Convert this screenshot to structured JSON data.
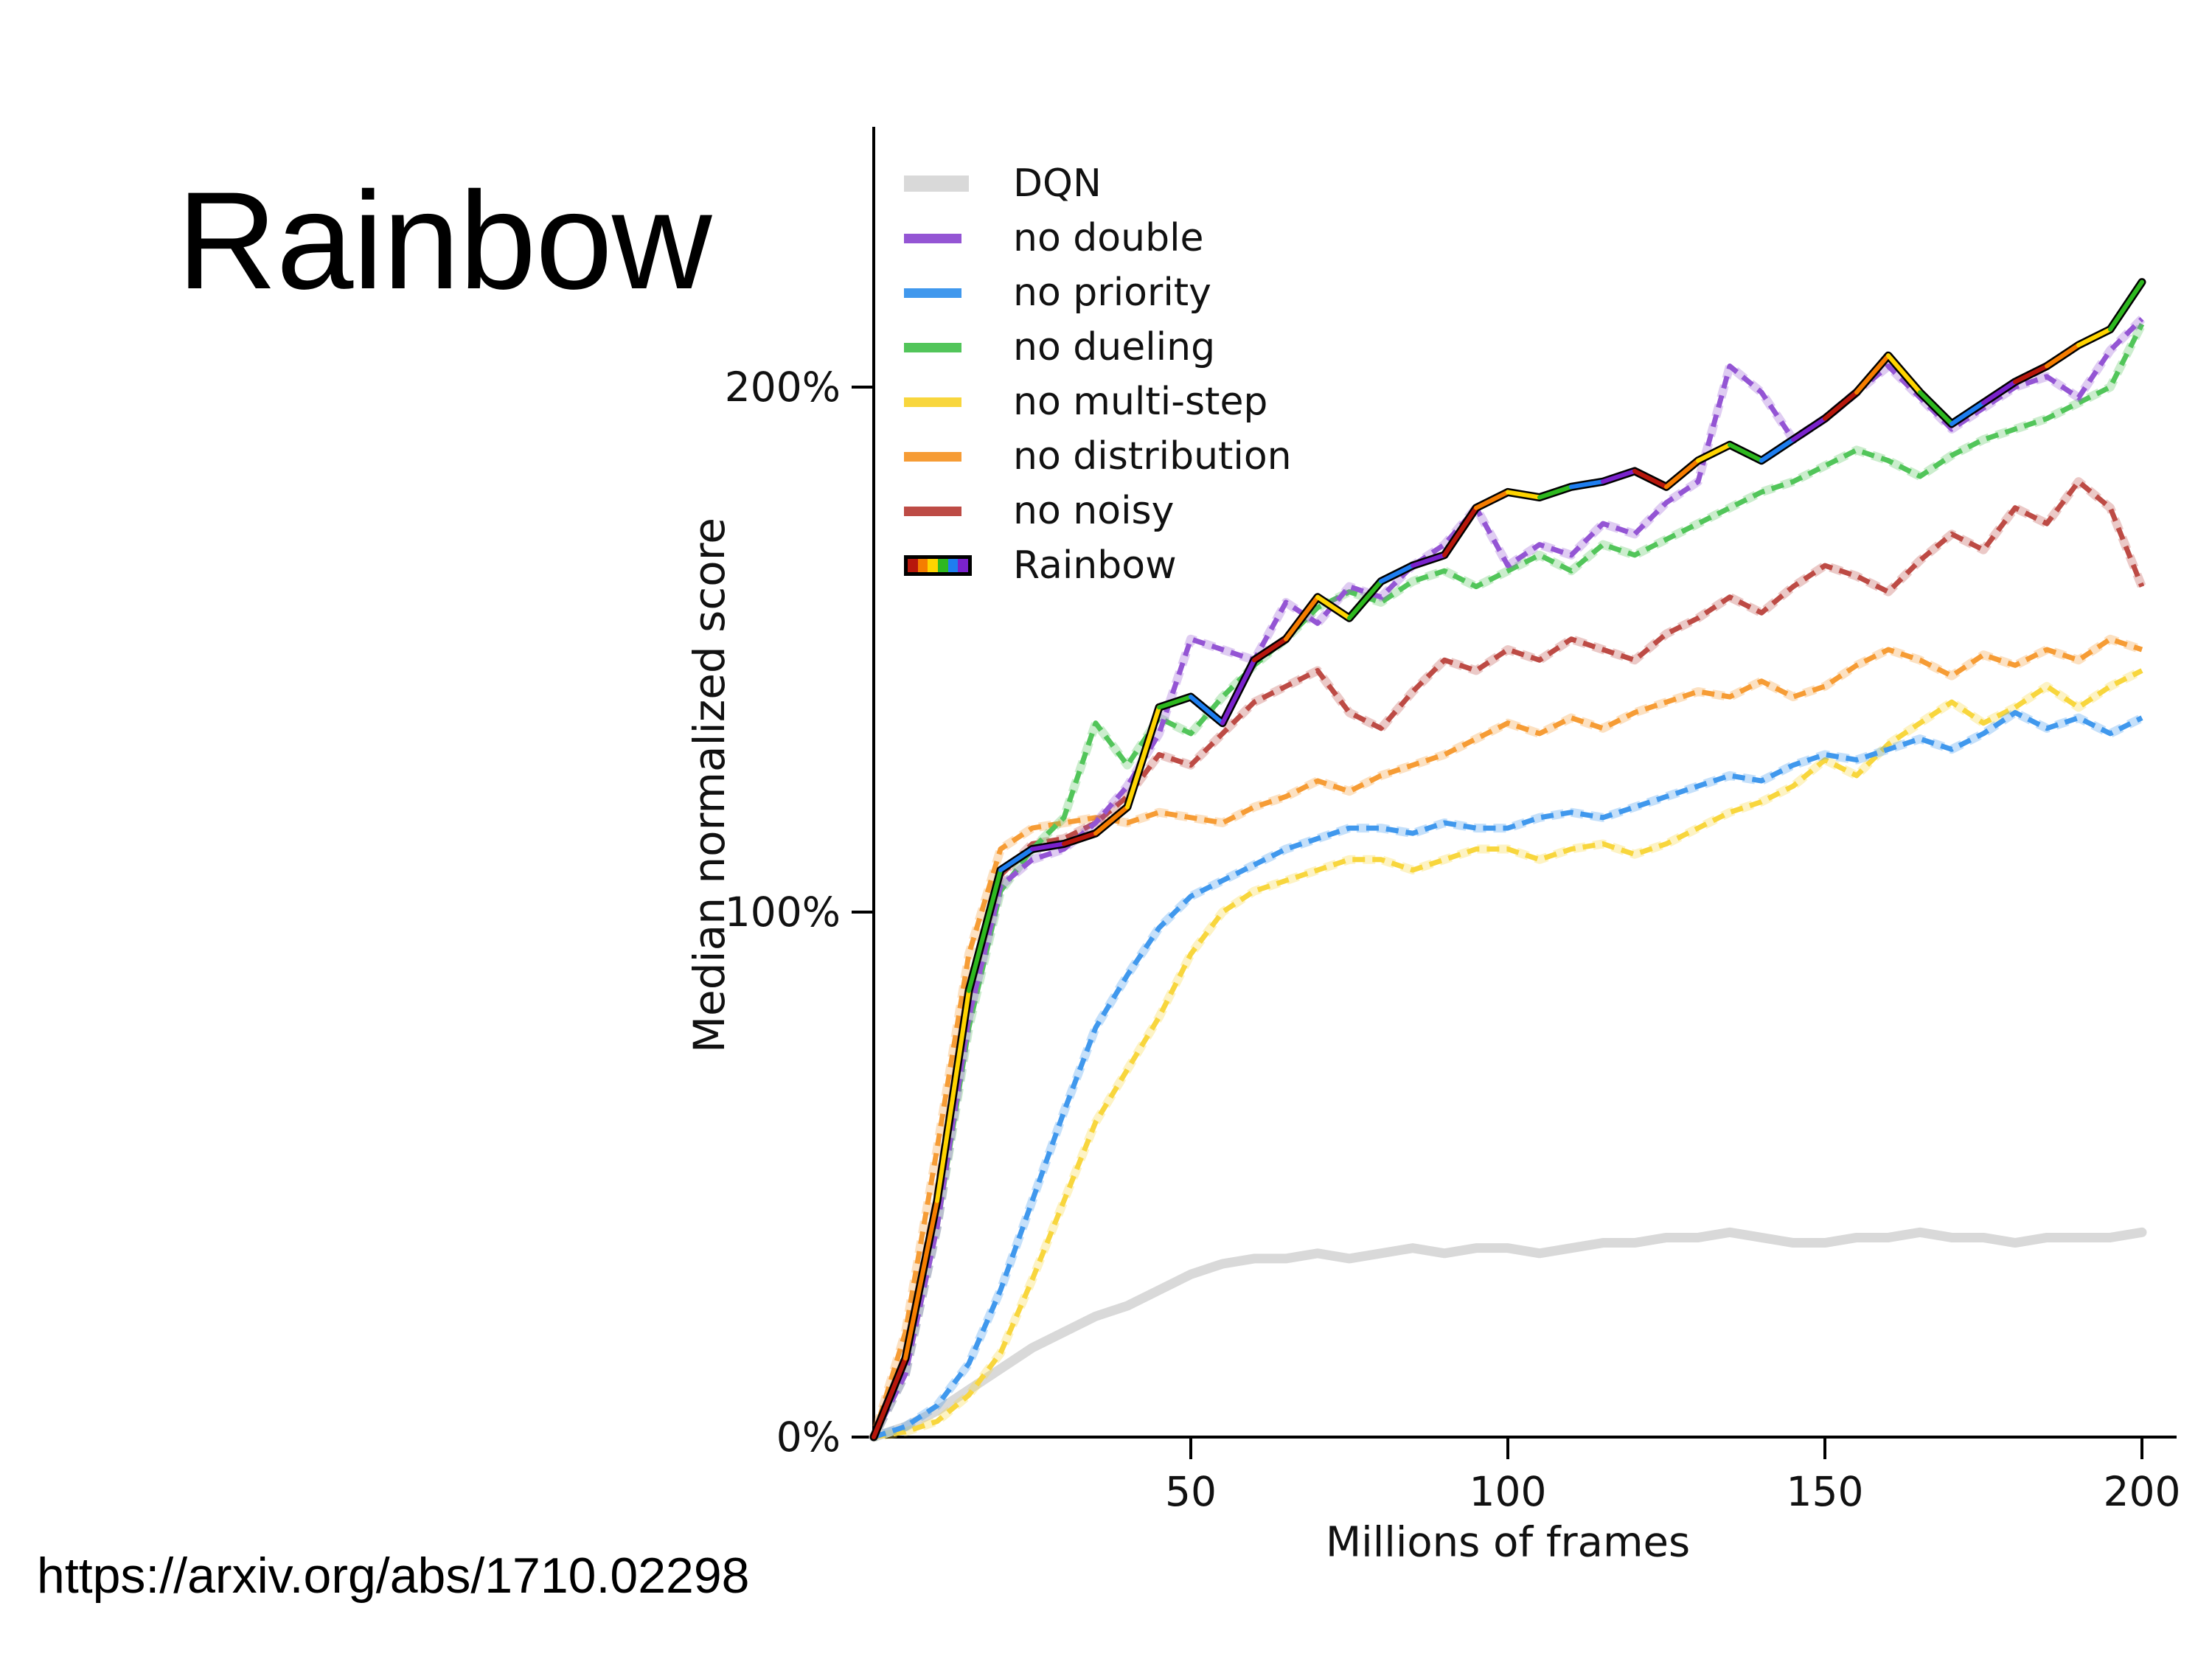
{
  "slide": {
    "title": "Rainbow",
    "source_url": "https://arxiv.org/abs/1710.02298"
  },
  "chart_data": {
    "type": "line",
    "title": "",
    "xlabel": "Millions of frames",
    "ylabel": "Median normalized score",
    "x_range": [
      0,
      200
    ],
    "y_range_percent": [
      0,
      250
    ],
    "grid": false,
    "legend_position": "upper left inside axes",
    "x_ticks": [
      {
        "value": 50,
        "label": "50"
      },
      {
        "value": 100,
        "label": "100"
      },
      {
        "value": 150,
        "label": "150"
      },
      {
        "value": 200,
        "label": "200"
      }
    ],
    "y_ticks": [
      {
        "value": 0,
        "label": "0%"
      },
      {
        "value": 100,
        "label": "100%"
      },
      {
        "value": 200,
        "label": "200%"
      }
    ],
    "x": [
      0,
      5,
      10,
      15,
      20,
      25,
      30,
      35,
      40,
      45,
      50,
      55,
      60,
      65,
      70,
      75,
      80,
      85,
      90,
      95,
      100,
      105,
      110,
      115,
      120,
      125,
      130,
      135,
      140,
      145,
      150,
      155,
      160,
      165,
      170,
      175,
      180,
      185,
      190,
      195,
      200
    ],
    "series": [
      {
        "name": "DQN",
        "color": "#d9d9d9",
        "line_style": "solid-thick",
        "values": [
          0,
          2,
          5,
          9,
          13,
          17,
          20,
          23,
          25,
          28,
          31,
          33,
          34,
          34,
          35,
          34,
          35,
          36,
          35,
          36,
          36,
          35,
          36,
          37,
          37,
          38,
          38,
          39,
          38,
          37,
          37,
          38,
          38,
          39,
          38,
          38,
          37,
          38,
          38,
          38,
          39
        ]
      },
      {
        "name": "no double",
        "color": "#9455d4",
        "line_style": "dashed",
        "values": [
          0,
          12,
          40,
          80,
          105,
          110,
          112,
          117,
          124,
          134,
          152,
          150,
          148,
          159,
          155,
          162,
          160,
          166,
          170,
          177,
          166,
          170,
          168,
          174,
          172,
          178,
          182,
          204,
          199,
          190,
          194,
          199,
          204,
          198,
          192,
          196,
          200,
          202,
          198,
          207,
          213
        ]
      },
      {
        "name": "no priority",
        "color": "#4098ed",
        "line_style": "dashed",
        "values": [
          0,
          2,
          6,
          14,
          28,
          45,
          62,
          78,
          88,
          97,
          103,
          106,
          109,
          112,
          114,
          116,
          116,
          115,
          117,
          116,
          116,
          118,
          119,
          118,
          120,
          122,
          124,
          126,
          125,
          128,
          130,
          129,
          131,
          133,
          131,
          134,
          138,
          135,
          137,
          134,
          137
        ]
      },
      {
        "name": "no dueling",
        "color": "#52c55a",
        "line_style": "dashed",
        "values": [
          0,
          12,
          40,
          78,
          104,
          112,
          118,
          136,
          128,
          137,
          134,
          141,
          147,
          152,
          158,
          161,
          159,
          163,
          165,
          162,
          165,
          168,
          165,
          170,
          168,
          171,
          174,
          177,
          180,
          182,
          185,
          188,
          186,
          183,
          187,
          190,
          192,
          194,
          197,
          200,
          212
        ]
      },
      {
        "name": "no multi-step",
        "color": "#f8d63d",
        "line_style": "dashed",
        "values": [
          0,
          1,
          3,
          8,
          16,
          30,
          45,
          60,
          70,
          80,
          92,
          100,
          104,
          106,
          108,
          110,
          110,
          108,
          110,
          112,
          112,
          110,
          112,
          113,
          111,
          113,
          116,
          119,
          121,
          124,
          129,
          126,
          132,
          136,
          140,
          136,
          139,
          143,
          139,
          143,
          146
        ]
      },
      {
        "name": "no distribution",
        "color": "#f69c35",
        "line_style": "dashed",
        "values": [
          0,
          20,
          55,
          92,
          112,
          116,
          117,
          118,
          117,
          119,
          118,
          117,
          120,
          122,
          125,
          123,
          126,
          128,
          130,
          133,
          136,
          134,
          137,
          135,
          138,
          140,
          142,
          141,
          144,
          141,
          143,
          147,
          150,
          148,
          145,
          149,
          147,
          150,
          148,
          152,
          150
        ]
      },
      {
        "name": "no noisy",
        "color": "#bd4b45",
        "line_style": "dashed",
        "values": [
          0,
          15,
          45,
          85,
          107,
          113,
          114,
          117,
          122,
          130,
          128,
          134,
          140,
          143,
          146,
          138,
          135,
          142,
          148,
          146,
          150,
          148,
          152,
          150,
          148,
          153,
          156,
          160,
          157,
          162,
          166,
          164,
          161,
          167,
          172,
          169,
          177,
          174,
          182,
          177,
          162
        ]
      },
      {
        "name": "Rainbow",
        "color": "multicolor",
        "line_style": "multicolor-solid",
        "values": [
          0,
          15,
          45,
          85,
          108,
          112,
          113,
          115,
          120,
          139,
          141,
          136,
          148,
          152,
          160,
          156,
          163,
          166,
          168,
          177,
          180,
          179,
          181,
          182,
          184,
          181,
          186,
          189,
          186,
          190,
          194,
          199,
          206,
          199,
          193,
          197,
          201,
          204,
          208,
          211,
          220
        ]
      }
    ],
    "rainbow_segment_colors": [
      "#b7170c",
      "#f57d00",
      "#ffd400",
      "#2eb81f",
      "#1e7ef0",
      "#7a22cc"
    ]
  }
}
